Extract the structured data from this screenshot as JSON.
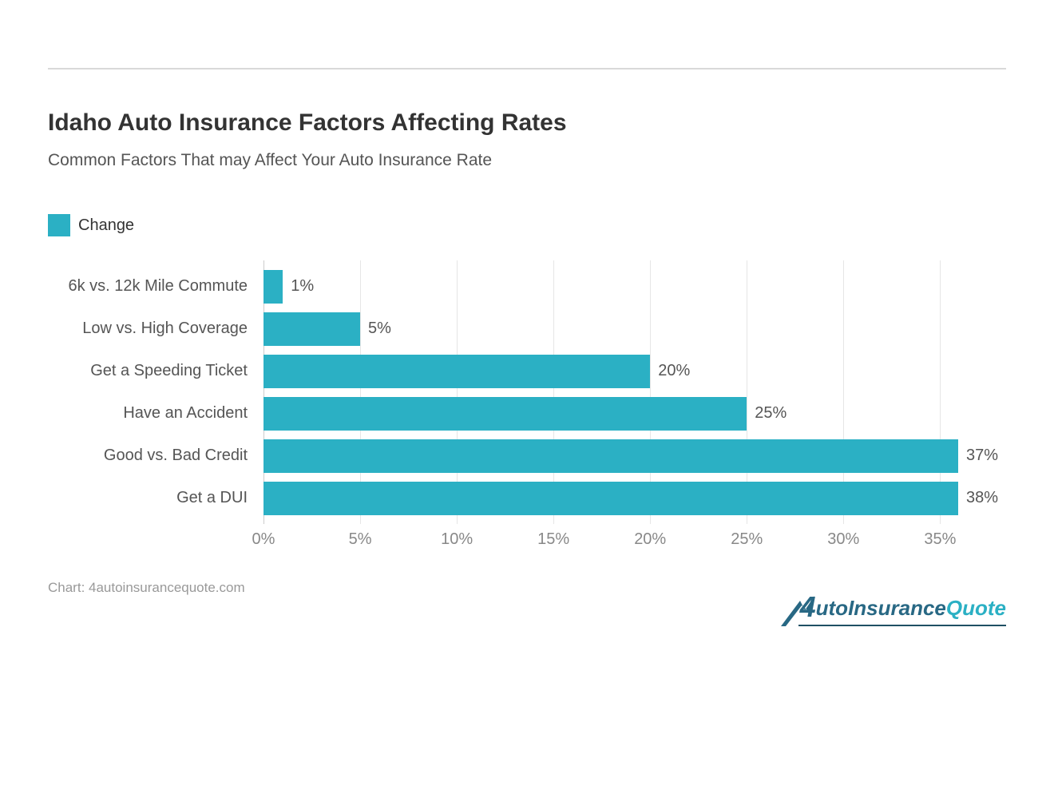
{
  "title": "Idaho Auto Insurance Factors Affecting Rates",
  "subtitle": "Common Factors That may Affect Your Auto Insurance Rate",
  "legend": {
    "label": "Change",
    "swatch_color": "#2bb0c4"
  },
  "chart": {
    "type": "bar-horizontal",
    "bar_color": "#2bb0c4",
    "background_color": "#ffffff",
    "grid_color": "#e6e6e6",
    "axis_color": "#cccccc",
    "label_color": "#555555",
    "tick_color": "#888888",
    "label_fontsize": 20,
    "x_axis": {
      "min": 0,
      "max": 38,
      "tick_step": 5,
      "tick_suffix": "%"
    },
    "categories": [
      "6k vs. 12k Mile Commute",
      "Low vs. High Coverage",
      "Get a Speeding Ticket",
      "Have an Accident",
      "Good vs. Bad Credit",
      "Get a DUI"
    ],
    "values": [
      1,
      5,
      20,
      25,
      37,
      38
    ],
    "value_labels": [
      "1%",
      "5%",
      "20%",
      "25%",
      "37%",
      "38%"
    ]
  },
  "source": "Chart: 4autoinsurancequote.com",
  "logo": {
    "text_four": "4",
    "text_auto": "utoInsurance",
    "text_quote": "Quote",
    "primary_color": "#286884",
    "accent_color": "#2bb0c4",
    "underline_color": "#1f4f63"
  }
}
